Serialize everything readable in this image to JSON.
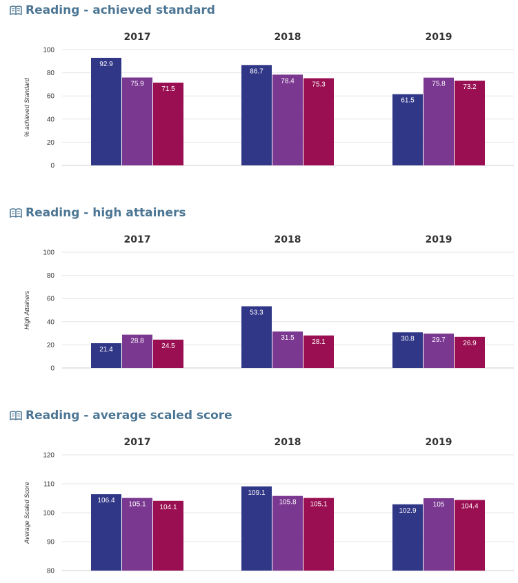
{
  "colors": {
    "title": "#4c7694",
    "series": [
      "#313787",
      "#7b3891",
      "#990f52"
    ],
    "grid": "#e6e6e6"
  },
  "icons": {
    "title": "book-icon"
  },
  "chart_data": [
    {
      "type": "bar",
      "title": "Reading - achieved standard",
      "ylabel": "% achieved Standard",
      "xlabel": "",
      "ylim": [
        0,
        100
      ],
      "yticks": [
        0,
        20,
        40,
        60,
        80,
        100
      ],
      "categories": [
        "2017",
        "2018",
        "2019"
      ],
      "series": [
        {
          "values": [
            92.9,
            86.7,
            61.5
          ]
        },
        {
          "values": [
            75.9,
            78.4,
            75.8
          ]
        },
        {
          "values": [
            71.5,
            75.3,
            73.2
          ]
        }
      ],
      "grid": true
    },
    {
      "type": "bar",
      "title": "Reading - high attainers",
      "ylabel": "High Attainers",
      "xlabel": "",
      "ylim": [
        0,
        100
      ],
      "yticks": [
        0,
        20,
        40,
        60,
        80,
        100
      ],
      "categories": [
        "2017",
        "2018",
        "2019"
      ],
      "series": [
        {
          "values": [
            21.4,
            53.3,
            30.8
          ]
        },
        {
          "values": [
            28.8,
            31.5,
            29.7
          ]
        },
        {
          "values": [
            24.5,
            28.1,
            26.9
          ]
        }
      ],
      "grid": true
    },
    {
      "type": "bar",
      "title": "Reading - average scaled score",
      "ylabel": "Average Scaled Score",
      "xlabel": "",
      "ylim": [
        80,
        120
      ],
      "yticks": [
        80,
        90,
        100,
        110,
        120
      ],
      "categories": [
        "2017",
        "2018",
        "2019"
      ],
      "series": [
        {
          "values": [
            106.4,
            109.1,
            102.9
          ]
        },
        {
          "values": [
            105.1,
            105.8,
            105
          ]
        },
        {
          "values": [
            104.1,
            105.1,
            104.4
          ]
        }
      ],
      "grid": true
    }
  ]
}
